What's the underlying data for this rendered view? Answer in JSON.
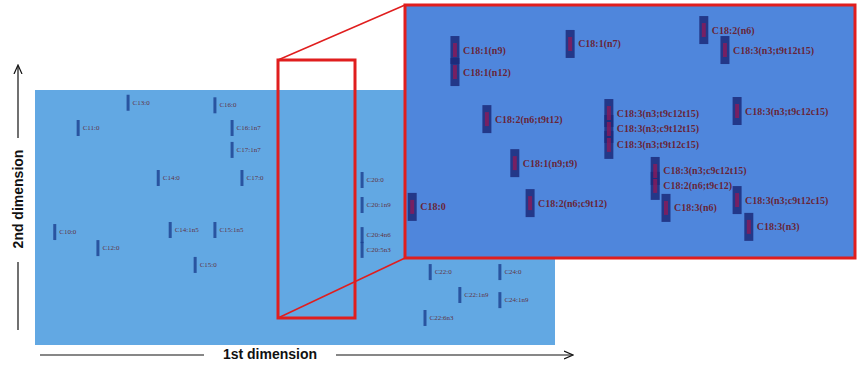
{
  "chart_data": [
    {
      "type": "scatter",
      "xlabel": "1st dimension",
      "ylabel": "2nd dimension",
      "xlim": [
        0,
        100
      ],
      "ylim": [
        0,
        100
      ],
      "tick_labels": false,
      "color": "#1c3f8f",
      "labels": [
        "C10:0",
        "C11:0",
        "C12:0",
        "C13:0",
        "C14:0",
        "C14:1n5",
        "C15:0",
        "C15:1n5",
        "C16:0",
        "C16:1n7",
        "C17:1n7",
        "C17:0",
        "C20:0",
        "C20:1n9",
        "C20:4n6",
        "C20:5n3",
        "C22:0",
        "C22:1n9",
        "C22:6n3",
        "C24:0",
        "C24:1n9"
      ],
      "x": [
        3.8,
        8.3,
        12.1,
        17.9,
        23.7,
        26.0,
        30.8,
        34.6,
        34.6,
        37.9,
        37.9,
        39.8,
        62.9,
        62.9,
        62.9,
        62.9,
        76.0,
        81.7,
        75.0,
        89.4,
        89.4
      ],
      "values": [
        44.3,
        85.1,
        38.0,
        95.0,
        65.5,
        45.1,
        31.4,
        45.1,
        94.0,
        85.1,
        76.5,
        65.5,
        64.7,
        54.9,
        43.1,
        37.3,
        28.6,
        19.6,
        10.6,
        28.6,
        17.6
      ]
    },
    {
      "type": "scatter",
      "xlim": [
        0,
        100
      ],
      "ylim": [
        0,
        100
      ],
      "tick_labels": false,
      "color": "#8b1a5a",
      "labels": [
        "C18:1(n9)",
        "C18:1(n12)",
        "C18:1(n7)",
        "C18:2(n6)",
        "C18:3(n3;t9t12t15)",
        "C18:2(n6;t9t12)",
        "C18:3(n3;t9c12t15)",
        "C18:3(n3;c9t12t15)",
        "C18:3(n3;t9t12c15)",
        "C18:3(n3;t9c12c15)",
        "C18:1(n9;t9)",
        "C18:3(n3;c9c12t15)",
        "C18:2(n6;t9c12)",
        "C18:2(n6;c9t12)",
        "C18:3(n3;c9t12c15)",
        "C18:0",
        "C18:3(n6)",
        "C18:3(n3)"
      ],
      "x": [
        11.1,
        11.1,
        36.7,
        66.4,
        71.1,
        18.2,
        45.3,
        45.3,
        45.3,
        73.8,
        24.4,
        55.6,
        55.6,
        27.8,
        73.8,
        1.6,
        58.0,
        76.4
      ],
      "values": [
        82.2,
        73.5,
        84.6,
        90.1,
        82.2,
        54.9,
        57.3,
        51.0,
        44.7,
        58.1,
        37.5,
        34.4,
        28.5,
        21.7,
        22.9,
        20.2,
        19.8,
        12.3
      ]
    }
  ]
}
